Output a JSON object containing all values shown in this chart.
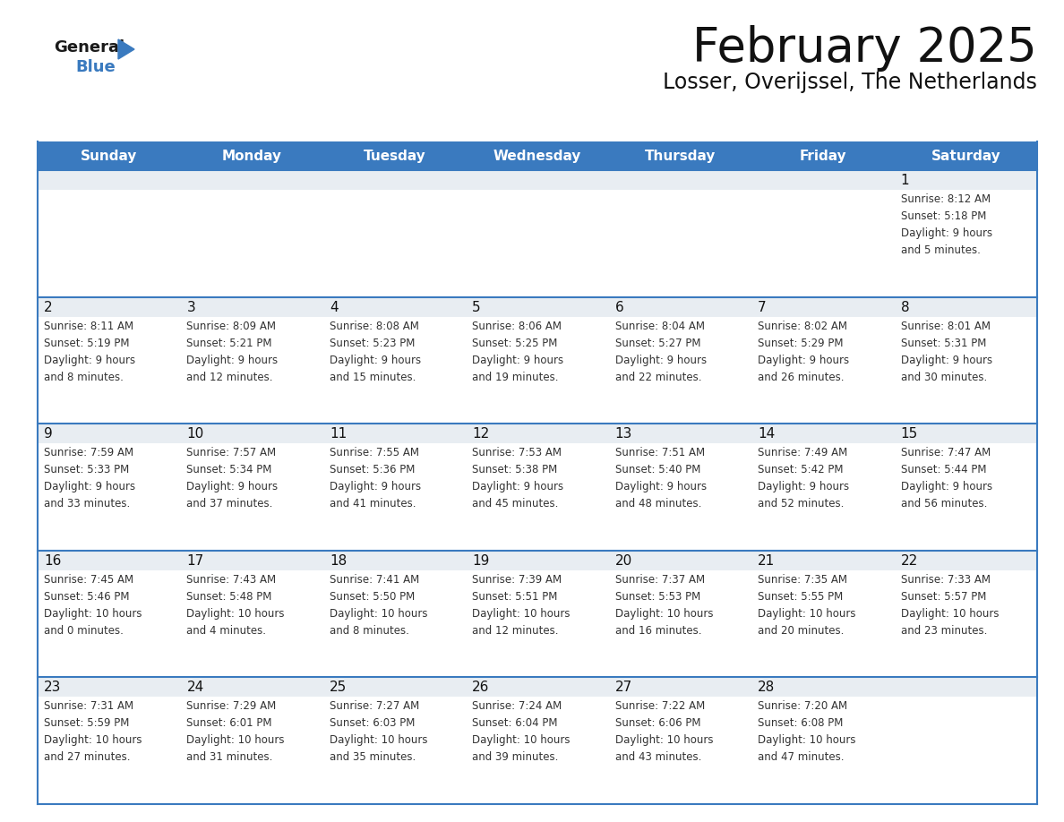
{
  "title": "February 2025",
  "subtitle": "Losser, Overijssel, The Netherlands",
  "header_color": "#3a7abf",
  "header_text_color": "#ffffff",
  "cell_bg_color": "#e8edf2",
  "cell_bg_color2": "#ffffff",
  "border_color": "#3a7abf",
  "text_color": "#333333",
  "days_of_week": [
    "Sunday",
    "Monday",
    "Tuesday",
    "Wednesday",
    "Thursday",
    "Friday",
    "Saturday"
  ],
  "calendar_data": [
    [
      {
        "day": null,
        "info": null
      },
      {
        "day": null,
        "info": null
      },
      {
        "day": null,
        "info": null
      },
      {
        "day": null,
        "info": null
      },
      {
        "day": null,
        "info": null
      },
      {
        "day": null,
        "info": null
      },
      {
        "day": 1,
        "info": "Sunrise: 8:12 AM\nSunset: 5:18 PM\nDaylight: 9 hours\nand 5 minutes."
      }
    ],
    [
      {
        "day": 2,
        "info": "Sunrise: 8:11 AM\nSunset: 5:19 PM\nDaylight: 9 hours\nand 8 minutes."
      },
      {
        "day": 3,
        "info": "Sunrise: 8:09 AM\nSunset: 5:21 PM\nDaylight: 9 hours\nand 12 minutes."
      },
      {
        "day": 4,
        "info": "Sunrise: 8:08 AM\nSunset: 5:23 PM\nDaylight: 9 hours\nand 15 minutes."
      },
      {
        "day": 5,
        "info": "Sunrise: 8:06 AM\nSunset: 5:25 PM\nDaylight: 9 hours\nand 19 minutes."
      },
      {
        "day": 6,
        "info": "Sunrise: 8:04 AM\nSunset: 5:27 PM\nDaylight: 9 hours\nand 22 minutes."
      },
      {
        "day": 7,
        "info": "Sunrise: 8:02 AM\nSunset: 5:29 PM\nDaylight: 9 hours\nand 26 minutes."
      },
      {
        "day": 8,
        "info": "Sunrise: 8:01 AM\nSunset: 5:31 PM\nDaylight: 9 hours\nand 30 minutes."
      }
    ],
    [
      {
        "day": 9,
        "info": "Sunrise: 7:59 AM\nSunset: 5:33 PM\nDaylight: 9 hours\nand 33 minutes."
      },
      {
        "day": 10,
        "info": "Sunrise: 7:57 AM\nSunset: 5:34 PM\nDaylight: 9 hours\nand 37 minutes."
      },
      {
        "day": 11,
        "info": "Sunrise: 7:55 AM\nSunset: 5:36 PM\nDaylight: 9 hours\nand 41 minutes."
      },
      {
        "day": 12,
        "info": "Sunrise: 7:53 AM\nSunset: 5:38 PM\nDaylight: 9 hours\nand 45 minutes."
      },
      {
        "day": 13,
        "info": "Sunrise: 7:51 AM\nSunset: 5:40 PM\nDaylight: 9 hours\nand 48 minutes."
      },
      {
        "day": 14,
        "info": "Sunrise: 7:49 AM\nSunset: 5:42 PM\nDaylight: 9 hours\nand 52 minutes."
      },
      {
        "day": 15,
        "info": "Sunrise: 7:47 AM\nSunset: 5:44 PM\nDaylight: 9 hours\nand 56 minutes."
      }
    ],
    [
      {
        "day": 16,
        "info": "Sunrise: 7:45 AM\nSunset: 5:46 PM\nDaylight: 10 hours\nand 0 minutes."
      },
      {
        "day": 17,
        "info": "Sunrise: 7:43 AM\nSunset: 5:48 PM\nDaylight: 10 hours\nand 4 minutes."
      },
      {
        "day": 18,
        "info": "Sunrise: 7:41 AM\nSunset: 5:50 PM\nDaylight: 10 hours\nand 8 minutes."
      },
      {
        "day": 19,
        "info": "Sunrise: 7:39 AM\nSunset: 5:51 PM\nDaylight: 10 hours\nand 12 minutes."
      },
      {
        "day": 20,
        "info": "Sunrise: 7:37 AM\nSunset: 5:53 PM\nDaylight: 10 hours\nand 16 minutes."
      },
      {
        "day": 21,
        "info": "Sunrise: 7:35 AM\nSunset: 5:55 PM\nDaylight: 10 hours\nand 20 minutes."
      },
      {
        "day": 22,
        "info": "Sunrise: 7:33 AM\nSunset: 5:57 PM\nDaylight: 10 hours\nand 23 minutes."
      }
    ],
    [
      {
        "day": 23,
        "info": "Sunrise: 7:31 AM\nSunset: 5:59 PM\nDaylight: 10 hours\nand 27 minutes."
      },
      {
        "day": 24,
        "info": "Sunrise: 7:29 AM\nSunset: 6:01 PM\nDaylight: 10 hours\nand 31 minutes."
      },
      {
        "day": 25,
        "info": "Sunrise: 7:27 AM\nSunset: 6:03 PM\nDaylight: 10 hours\nand 35 minutes."
      },
      {
        "day": 26,
        "info": "Sunrise: 7:24 AM\nSunset: 6:04 PM\nDaylight: 10 hours\nand 39 minutes."
      },
      {
        "day": 27,
        "info": "Sunrise: 7:22 AM\nSunset: 6:06 PM\nDaylight: 10 hours\nand 43 minutes."
      },
      {
        "day": 28,
        "info": "Sunrise: 7:20 AM\nSunset: 6:08 PM\nDaylight: 10 hours\nand 47 minutes."
      },
      {
        "day": null,
        "info": null
      }
    ]
  ],
  "logo_text_general": "General",
  "logo_text_blue": "Blue",
  "logo_color_general": "#1a1a1a",
  "logo_color_blue": "#3a7abf",
  "logo_triangle_color": "#3a7abf",
  "fig_width": 11.88,
  "fig_height": 9.18,
  "dpi": 100
}
